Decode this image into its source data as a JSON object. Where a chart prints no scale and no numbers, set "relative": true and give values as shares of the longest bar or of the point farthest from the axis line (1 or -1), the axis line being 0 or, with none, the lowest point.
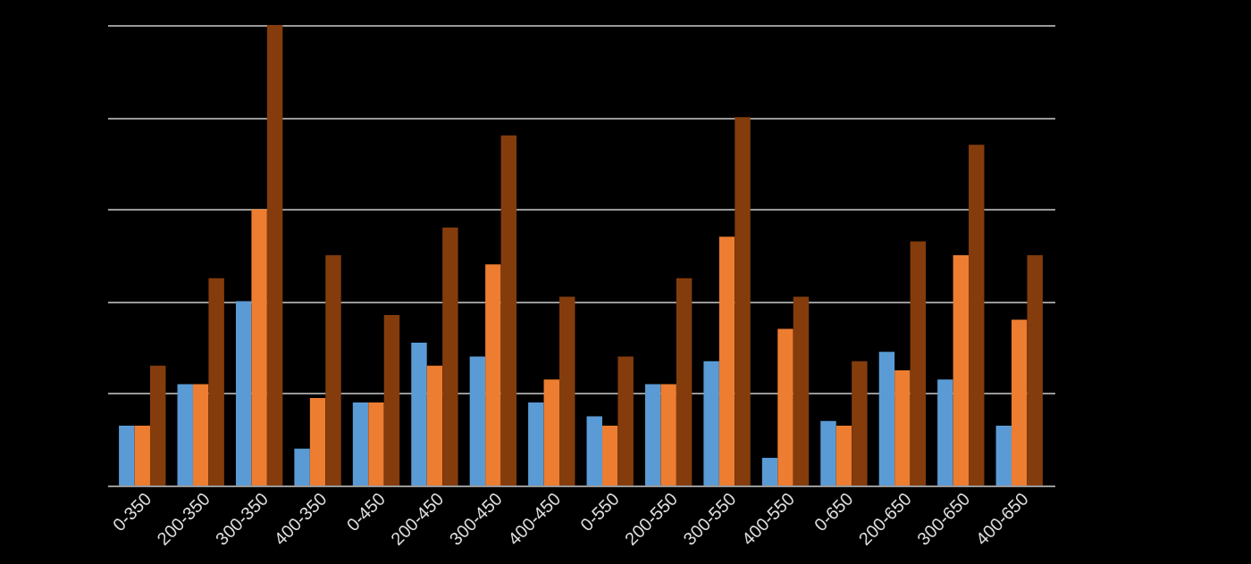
{
  "chart_data": {
    "type": "bar",
    "relative": true,
    "grid": "y",
    "categories": [
      "0-350",
      "200-350",
      "300-350",
      "400-350",
      "0-450",
      "200-450",
      "300-450",
      "400-450",
      "0-550",
      "200-550",
      "300-550",
      "400-550",
      "0-650",
      "200-650",
      "300-650",
      "400-650"
    ],
    "series": [
      {
        "color": "#5b9bd5",
        "values": [
          0.13,
          0.22,
          0.4,
          0.08,
          0.18,
          0.31,
          0.28,
          0.18,
          0.15,
          0.22,
          0.27,
          0.06,
          0.14,
          0.29,
          0.23,
          0.13
        ]
      },
      {
        "color": "#ed7d31",
        "values": [
          0.13,
          0.22,
          0.6,
          0.19,
          0.18,
          0.26,
          0.48,
          0.23,
          0.13,
          0.22,
          0.54,
          0.34,
          0.13,
          0.25,
          0.5,
          0.36
        ]
      },
      {
        "color": "#843c0c",
        "values": [
          0.26,
          0.45,
          1,
          0.5,
          0.37,
          0.56,
          0.76,
          0.41,
          0.28,
          0.45,
          0.8,
          0.41,
          0.27,
          0.53,
          0.74,
          0.5
        ]
      }
    ]
  }
}
